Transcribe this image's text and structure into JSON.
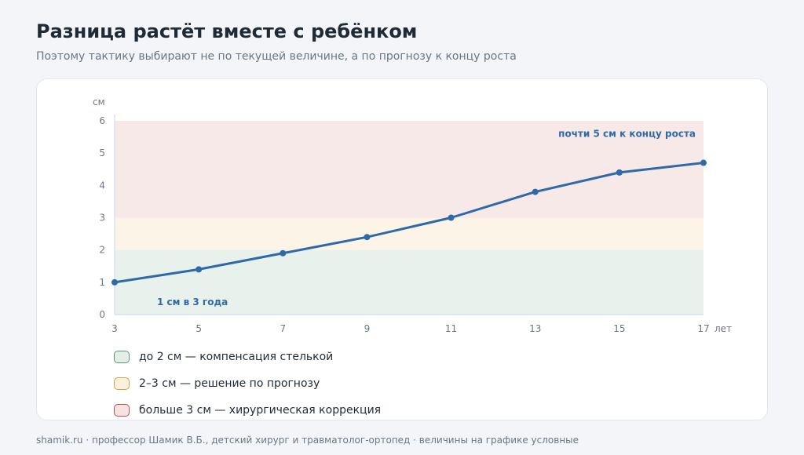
{
  "header": {
    "title": "Разница растёт вместе с ребёнком",
    "subtitle": "Поэтому тактику выбирают не по текущей величине, а по прогнозу к концу роста"
  },
  "chart_data": {
    "type": "line",
    "x": [
      3,
      5,
      7,
      9,
      11,
      13,
      15,
      17
    ],
    "series": [
      {
        "values": [
          1.0,
          1.4,
          1.9,
          2.4,
          3.0,
          3.8,
          4.4,
          4.7
        ]
      }
    ],
    "xlabel": "лет",
    "ylabel": "см",
    "xlim": [
      3,
      17
    ],
    "ylim": [
      0,
      6
    ],
    "yticks": [
      "0",
      "1",
      "2",
      "3",
      "4",
      "5",
      "6"
    ],
    "xticks": [
      "3",
      "5",
      "7",
      "9",
      "11",
      "13",
      "15",
      "17"
    ],
    "bands": [
      {
        "from": 0,
        "to": 2,
        "color": "#e9f1ec",
        "label": "до 2 см — компенсация стелькой",
        "swatch_fill": "#e3efe6",
        "swatch_border": "#5a9a6e"
      },
      {
        "from": 2,
        "to": 3,
        "color": "#fcf4e7",
        "label": "2–3 см — решение по прогнозу",
        "swatch_fill": "#fbf0dd",
        "swatch_border": "#d4a24c"
      },
      {
        "from": 3,
        "to": 6,
        "color": "#f6e9e7",
        "label": "больше 3 см — хирургическая коррекция",
        "swatch_fill": "#f6e3e1",
        "swatch_border": "#c0504d"
      }
    ],
    "annotations": {
      "start": "1 см в 3 года",
      "end": "почти 5 см к концу роста"
    },
    "line_color": "#2f6aa8",
    "grid": false
  },
  "footer": {
    "text": "shamik.ru · профессор Шамик В.Б., детский хирург и травматолог-ортопед · величины на графике условные"
  }
}
